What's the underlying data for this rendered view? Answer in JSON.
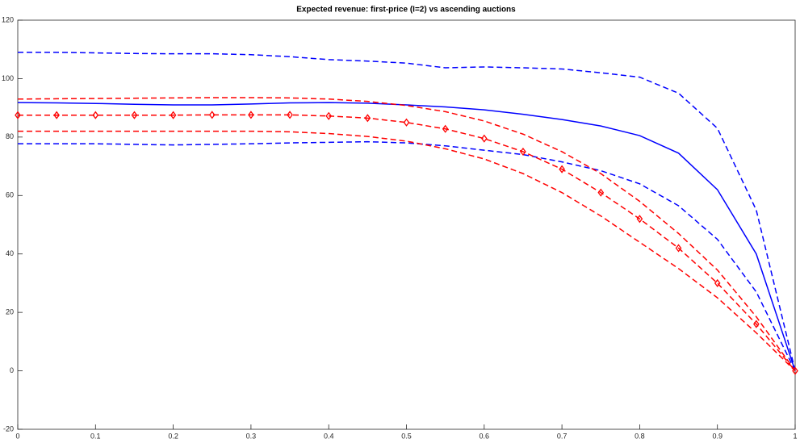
{
  "chart_data": {
    "type": "line",
    "title": "Expected revenue: first-price (I=2) vs ascending auctions",
    "x": [
      0,
      0.05,
      0.1,
      0.15,
      0.2,
      0.25,
      0.3,
      0.35,
      0.4,
      0.45,
      0.5,
      0.55,
      0.6,
      0.65,
      0.7,
      0.75,
      0.8,
      0.85,
      0.9,
      0.95,
      1
    ],
    "series": [
      {
        "color": "#0000ff",
        "line_style": "dashed",
        "marker": "none",
        "values": [
          109,
          109,
          108.8,
          108.6,
          108.5,
          108.5,
          108.2,
          107.5,
          106.5,
          106,
          105.3,
          103.7,
          104,
          103.7,
          103.3,
          102,
          100.5,
          95,
          83,
          55,
          0
        ]
      },
      {
        "color": "#0000ff",
        "line_style": "solid",
        "marker": "none",
        "values": [
          91.8,
          91.7,
          91.5,
          91.2,
          91,
          91,
          91.3,
          91.7,
          91.8,
          91.6,
          91,
          90.3,
          89.3,
          87.8,
          86,
          83.8,
          80.5,
          74.5,
          62,
          40,
          0
        ]
      },
      {
        "color": "#0000ff",
        "line_style": "dashed",
        "marker": "none",
        "values": [
          77.7,
          77.7,
          77.7,
          77.5,
          77.3,
          77.5,
          77.7,
          78,
          78.2,
          78.4,
          78,
          77,
          75.5,
          74,
          71.5,
          68.5,
          64,
          56.5,
          45,
          27,
          0
        ]
      },
      {
        "color": "#ff0000",
        "line_style": "dashed",
        "marker": "none",
        "values": [
          93,
          93.1,
          93.2,
          93.3,
          93.4,
          93.5,
          93.5,
          93.4,
          93,
          92.2,
          90.8,
          88.7,
          85.5,
          81,
          75,
          67.5,
          58,
          47,
          34.5,
          18.5,
          0
        ]
      },
      {
        "color": "#ff0000",
        "line_style": "dashed",
        "marker": "diamond",
        "values": [
          87.5,
          87.5,
          87.5,
          87.5,
          87.5,
          87.6,
          87.6,
          87.6,
          87.2,
          86.5,
          85,
          82.8,
          79.5,
          75,
          69,
          61,
          52,
          42,
          30,
          16,
          0
        ]
      },
      {
        "color": "#ff0000",
        "line_style": "dashed",
        "marker": "none",
        "values": [
          82,
          82,
          82,
          82,
          82,
          82,
          82,
          81.8,
          81.2,
          80.2,
          78.6,
          76,
          72.5,
          67.5,
          61,
          53,
          44,
          35,
          25,
          13,
          0
        ]
      }
    ],
    "xlim": [
      0,
      1
    ],
    "xticks": [
      0,
      0.1,
      0.2,
      0.3,
      0.4,
      0.5,
      0.6,
      0.7,
      0.8,
      0.9,
      1
    ],
    "ylim": [
      -20,
      120
    ],
    "yticks": [
      -20,
      0,
      20,
      40,
      60,
      80,
      100,
      120
    ],
    "grid": false
  }
}
